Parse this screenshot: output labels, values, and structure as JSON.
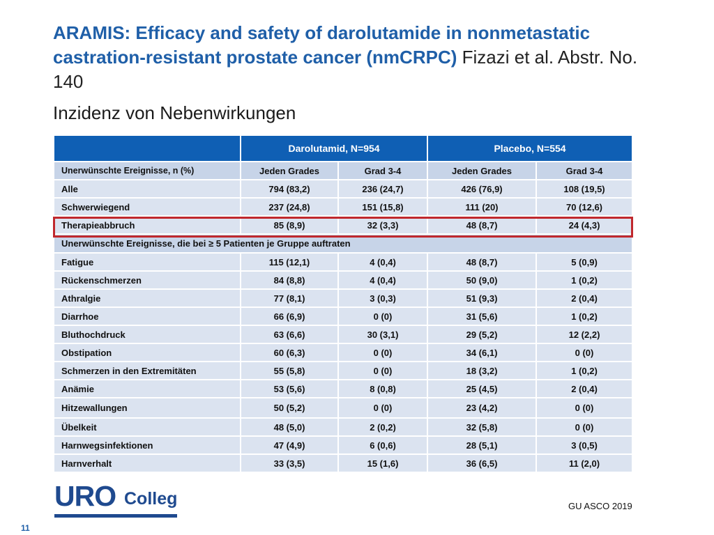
{
  "title": {
    "bold": "ARAMIS: Efficacy and safety of darolutamide in nonmetastatic castration-resistant prostate cancer (nmCRPC)",
    "author": "Fizazi et al. Abstr. No.  140"
  },
  "subtitle": "Inzidenz von Nebenwirkungen",
  "table": {
    "group_headers": [
      "",
      "Darolutamid, N=954",
      "Placebo, N=554"
    ],
    "sub_headers": [
      "Unerwünschte Ereignisse, n (%)",
      "Jeden Grades",
      "Grad 3-4",
      "Jeden Grades",
      "Grad 3-4"
    ],
    "overall_rows": [
      {
        "label": "Alle",
        "values": [
          "794 (83,2)",
          "236 (24,7)",
          "426 (76,9)",
          "108 (19,5)"
        ]
      },
      {
        "label": "Schwerwiegend",
        "values": [
          "237 (24,8)",
          "151 (15,8)",
          "111 (20)",
          "70 (12,6)"
        ]
      },
      {
        "label": "Therapieabbruch",
        "values": [
          "85 (8,9)",
          "32 (3,3)",
          "48 (8,7)",
          "24 (4,3)"
        ]
      }
    ],
    "section_label": "Unerwünschte Ereignisse, die bei  ≥ 5 Patienten je Gruppe auftraten",
    "event_rows": [
      {
        "label": "Fatigue",
        "values": [
          "115 (12,1)",
          "4 (0,4)",
          "48 (8,7)",
          "5 (0,9)"
        ]
      },
      {
        "label": "Rückenschmerzen",
        "values": [
          "84 (8,8)",
          "4 (0,4)",
          "50 (9,0)",
          "1 (0,2)"
        ]
      },
      {
        "label": "Athralgie",
        "values": [
          "77 (8,1)",
          "3 (0,3)",
          "51 (9,3)",
          "2 (0,4)"
        ]
      },
      {
        "label": "Diarrhoe",
        "values": [
          "66 (6,9)",
          "0 (0)",
          "31 (5,6)",
          "1 (0,2)"
        ]
      },
      {
        "label": "Bluthochdruck",
        "values": [
          "63 (6,6)",
          "30 (3,1)",
          "29 (5,2)",
          "12 (2,2)"
        ]
      },
      {
        "label": "Obstipation",
        "values": [
          "60 (6,3)",
          "0 (0)",
          "34 (6,1)",
          "0 (0)"
        ]
      },
      {
        "label": "Schmerzen in den Extremitäten",
        "values": [
          "55 (5,8)",
          "0 (0)",
          "18 (3,2)",
          "1 (0,2)"
        ]
      },
      {
        "label": "Anämie",
        "values": [
          "53 (5,6)",
          "8 (0,8)",
          "25 (4,5)",
          "2 (0,4)"
        ]
      },
      {
        "label": "Hitzewallungen",
        "values": [
          "50 (5,2)",
          "0 (0)",
          "23 (4,2)",
          "0 (0)"
        ]
      },
      {
        "label": "Übelkeit",
        "values": [
          "48 (5,0)",
          "2 (0,2)",
          "32 (5,8)",
          "0 (0)"
        ]
      },
      {
        "label": "Harnwegsinfektionen",
        "values": [
          "47 (4,9)",
          "6 (0,6)",
          "28 (5,1)",
          "3 (0,5)"
        ]
      },
      {
        "label": "Harnverhalt",
        "values": [
          "33 (3,5)",
          "15 (1,6)",
          "36 (6,5)",
          "11 (2,0)"
        ]
      }
    ]
  },
  "logo": {
    "uro": "URO",
    "colleg": "Colleg"
  },
  "source": "GU ASCO 2019",
  "slide_number": "11",
  "colors": {
    "title_blue": "#1f5fa8",
    "header_blue": "#0f5fb4",
    "row_light": "#dbe3f0",
    "row_mid": "#c7d4e8",
    "highlight_red": "#c0282d",
    "logo_blue": "#1f4a8f"
  }
}
